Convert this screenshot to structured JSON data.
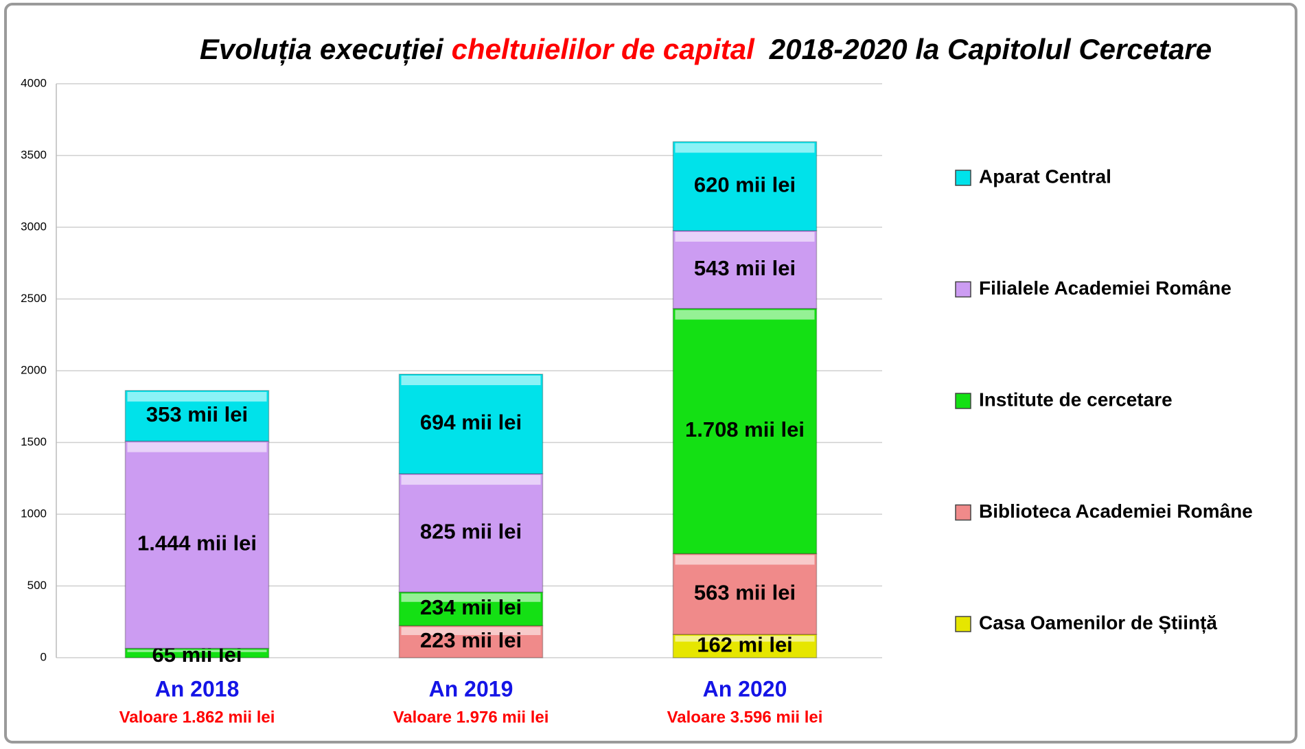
{
  "chart_data": {
    "type": "stacked_bar",
    "title_parts": [
      "Evoluția execuției",
      "cheltuielilor de capital",
      "2018-2020 la Capitolul Cercetare"
    ],
    "title_colors": [
      "#000000",
      "#ff0000",
      "#000000"
    ],
    "categories": [
      "An 2018",
      "An 2019",
      "An 2020"
    ],
    "category_notes": [
      "Valoare 1.862 mii lei",
      "Valoare 1.976 mii lei",
      "Valoare 3.596 mii lei"
    ],
    "series": [
      {
        "name": "Casa Oamenilor de Știință",
        "color": "#e6e600",
        "values": [
          null,
          null,
          162
        ],
        "value_labels": [
          null,
          null,
          "162 mi lei"
        ]
      },
      {
        "name": "Biblioteca Academiei Române",
        "color": "#f08a8a",
        "values": [
          null,
          223,
          563
        ],
        "value_labels": [
          null,
          "223 mii lei",
          "563 mii lei"
        ]
      },
      {
        "name": "Institute de cercetare",
        "color": "#14e014",
        "values": [
          65,
          234,
          1708
        ],
        "value_labels": [
          "65 mii lei",
          "234 mii lei",
          "1.708 mii lei"
        ]
      },
      {
        "name": "Filialele Academiei Române",
        "color": "#cc9cf2",
        "values": [
          1444,
          825,
          543
        ],
        "value_labels": [
          "1.444 mii lei",
          "825 mii lei",
          "543 mii lei"
        ]
      },
      {
        "name": "Aparat Central",
        "color": "#00e2ea",
        "values": [
          353,
          694,
          620
        ],
        "value_labels": [
          "353 mii lei",
          "694 mii lei",
          "620 mii lei"
        ]
      }
    ],
    "ylim": [
      0,
      4000
    ],
    "yticks": [
      0,
      500,
      1000,
      1500,
      2000,
      2500,
      3000,
      3500,
      4000
    ],
    "grid": true
  }
}
